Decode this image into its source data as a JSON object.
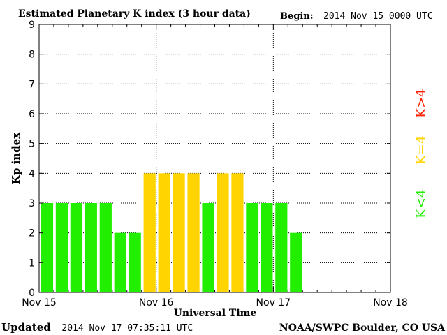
{
  "header": {
    "title": "Estimated Planetary K index (3 hour data)",
    "begin_label": "Begin:",
    "begin_value": "2014 Nov 15 0000 UTC"
  },
  "footer": {
    "updated_label": "Updated",
    "updated_value": "2014 Nov 17 07:35:11 UTC",
    "source": "NOAA/SWPC Boulder, CO USA"
  },
  "legend": {
    "below": "K<4",
    "equal": "K=4",
    "above": "K>4"
  },
  "colors": {
    "below": "#22ee00",
    "equal": "#ffd400",
    "above": "#ff2200"
  },
  "chart_data": {
    "type": "bar",
    "title": "Estimated Planetary K index (3 hour data)",
    "xlabel": "Universal Time",
    "ylabel": "Kp index",
    "ylim": [
      0,
      9
    ],
    "yticks": [
      0,
      1,
      2,
      3,
      4,
      5,
      6,
      7,
      8,
      9
    ],
    "x_tick_labels": [
      "Nov 15",
      "Nov 16",
      "Nov 17",
      "Nov 18"
    ],
    "bar_interval_hours": 3,
    "total_hours": 72,
    "grid": "dotted",
    "values": [
      3,
      3,
      3,
      3,
      3,
      2,
      2,
      4,
      4,
      4,
      4,
      3,
      4,
      4,
      3,
      3,
      3,
      2
    ]
  }
}
